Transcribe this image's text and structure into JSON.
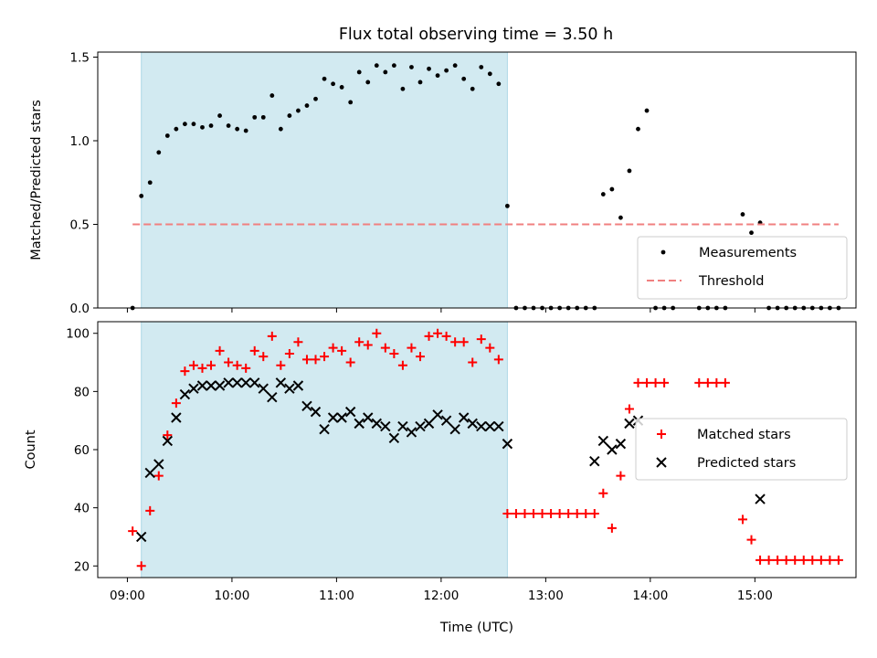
{
  "chart_data": [
    {
      "type": "scatter",
      "title": "Flux total observing time = 3.50 h",
      "xlabel": "",
      "ylabel": "Matched/Predicted stars",
      "xlim": [
        "08:43",
        "15:58"
      ],
      "ylim": [
        0,
        1.53
      ],
      "yticks": [
        0.0,
        0.5,
        1.0,
        1.5
      ],
      "ytick_labels": [
        "0.0",
        "0.5",
        "1.0",
        "1.5"
      ],
      "shaded_interval": [
        "09:08",
        "12:38"
      ],
      "shaded_color": "#add8e6",
      "legend_position": "lower-right",
      "series": [
        {
          "name": "Measurements",
          "marker": "dot",
          "color": "#000000",
          "points": [
            [
              "09:03",
              0.0
            ],
            [
              "09:08",
              0.67
            ],
            [
              "09:13",
              0.75
            ],
            [
              "09:18",
              0.93
            ],
            [
              "09:23",
              1.03
            ],
            [
              "09:28",
              1.07
            ],
            [
              "09:33",
              1.1
            ],
            [
              "09:38",
              1.1
            ],
            [
              "09:43",
              1.08
            ],
            [
              "09:48",
              1.09
            ],
            [
              "09:53",
              1.15
            ],
            [
              "09:58",
              1.09
            ],
            [
              "10:03",
              1.07
            ],
            [
              "10:08",
              1.06
            ],
            [
              "10:13",
              1.14
            ],
            [
              "10:18",
              1.14
            ],
            [
              "10:23",
              1.27
            ],
            [
              "10:28",
              1.07
            ],
            [
              "10:33",
              1.15
            ],
            [
              "10:38",
              1.18
            ],
            [
              "10:43",
              1.21
            ],
            [
              "10:48",
              1.25
            ],
            [
              "10:53",
              1.37
            ],
            [
              "10:58",
              1.34
            ],
            [
              "11:03",
              1.32
            ],
            [
              "11:08",
              1.23
            ],
            [
              "11:13",
              1.41
            ],
            [
              "11:18",
              1.35
            ],
            [
              "11:23",
              1.45
            ],
            [
              "11:28",
              1.41
            ],
            [
              "11:33",
              1.45
            ],
            [
              "11:38",
              1.31
            ],
            [
              "11:43",
              1.44
            ],
            [
              "11:48",
              1.35
            ],
            [
              "11:53",
              1.43
            ],
            [
              "11:58",
              1.39
            ],
            [
              "12:03",
              1.42
            ],
            [
              "12:08",
              1.45
            ],
            [
              "12:13",
              1.37
            ],
            [
              "12:18",
              1.31
            ],
            [
              "12:23",
              1.44
            ],
            [
              "12:28",
              1.4
            ],
            [
              "12:33",
              1.34
            ],
            [
              "12:38",
              0.61
            ],
            [
              "12:43",
              0.0
            ],
            [
              "12:48",
              0.0
            ],
            [
              "12:53",
              0.0
            ],
            [
              "12:58",
              0.0
            ],
            [
              "13:03",
              0.0
            ],
            [
              "13:08",
              0.0
            ],
            [
              "13:13",
              0.0
            ],
            [
              "13:18",
              0.0
            ],
            [
              "13:23",
              0.0
            ],
            [
              "13:28",
              0.0
            ],
            [
              "13:33",
              0.68
            ],
            [
              "13:38",
              0.71
            ],
            [
              "13:43",
              0.54
            ],
            [
              "13:48",
              0.82
            ],
            [
              "13:53",
              1.07
            ],
            [
              "13:58",
              1.18
            ],
            [
              "14:03",
              0.0
            ],
            [
              "14:08",
              0.0
            ],
            [
              "14:13",
              0.0
            ],
            [
              "14:28",
              0.0
            ],
            [
              "14:33",
              0.0
            ],
            [
              "14:38",
              0.0
            ],
            [
              "14:43",
              0.0
            ],
            [
              "14:53",
              0.56
            ],
            [
              "14:58",
              0.45
            ],
            [
              "15:03",
              0.51
            ],
            [
              "15:08",
              0.0
            ],
            [
              "15:13",
              0.0
            ],
            [
              "15:18",
              0.0
            ],
            [
              "15:23",
              0.0
            ],
            [
              "15:28",
              0.0
            ],
            [
              "15:33",
              0.0
            ],
            [
              "15:38",
              0.0
            ],
            [
              "15:43",
              0.0
            ],
            [
              "15:48",
              0.0
            ]
          ]
        },
        {
          "name": "Threshold",
          "type": "line",
          "style": "dashed",
          "color": "#f08080",
          "points": [
            [
              "09:03",
              0.5
            ],
            [
              "15:48",
              0.5
            ]
          ]
        }
      ]
    },
    {
      "type": "scatter",
      "title": "",
      "xlabel": "Time (UTC)",
      "ylabel": "Count",
      "xlim": [
        "08:43",
        "15:58"
      ],
      "xticks": [
        "09:00",
        "10:00",
        "11:00",
        "12:00",
        "13:00",
        "14:00",
        "15:00"
      ],
      "ylim": [
        16,
        104
      ],
      "yticks": [
        20,
        40,
        60,
        80,
        100
      ],
      "ytick_labels": [
        "20",
        "40",
        "60",
        "80",
        "100"
      ],
      "shaded_interval": [
        "09:08",
        "12:38"
      ],
      "shaded_color": "#add8e6",
      "legend_position": "center-right",
      "series": [
        {
          "name": "Matched stars",
          "marker": "plus",
          "color": "#ff0000",
          "points": [
            [
              "09:03",
              32
            ],
            [
              "09:08",
              20
            ],
            [
              "09:13",
              39
            ],
            [
              "09:18",
              51
            ],
            [
              "09:23",
              65
            ],
            [
              "09:28",
              76
            ],
            [
              "09:33",
              87
            ],
            [
              "09:38",
              89
            ],
            [
              "09:43",
              88
            ],
            [
              "09:48",
              89
            ],
            [
              "09:53",
              94
            ],
            [
              "09:58",
              90
            ],
            [
              "10:03",
              89
            ],
            [
              "10:08",
              88
            ],
            [
              "10:13",
              94
            ],
            [
              "10:18",
              92
            ],
            [
              "10:23",
              99
            ],
            [
              "10:28",
              89
            ],
            [
              "10:33",
              93
            ],
            [
              "10:38",
              97
            ],
            [
              "10:43",
              91
            ],
            [
              "10:48",
              91
            ],
            [
              "10:53",
              92
            ],
            [
              "10:58",
              95
            ],
            [
              "11:03",
              94
            ],
            [
              "11:08",
              90
            ],
            [
              "11:13",
              97
            ],
            [
              "11:18",
              96
            ],
            [
              "11:23",
              100
            ],
            [
              "11:28",
              95
            ],
            [
              "11:33",
              93
            ],
            [
              "11:38",
              89
            ],
            [
              "11:43",
              95
            ],
            [
              "11:48",
              92
            ],
            [
              "11:53",
              99
            ],
            [
              "11:58",
              100
            ],
            [
              "12:03",
              99
            ],
            [
              "12:08",
              97
            ],
            [
              "12:13",
              97
            ],
            [
              "12:18",
              90
            ],
            [
              "12:23",
              98
            ],
            [
              "12:28",
              95
            ],
            [
              "12:33",
              91
            ],
            [
              "12:38",
              38
            ],
            [
              "12:43",
              38
            ],
            [
              "12:48",
              38
            ],
            [
              "12:53",
              38
            ],
            [
              "12:58",
              38
            ],
            [
              "13:03",
              38
            ],
            [
              "13:08",
              38
            ],
            [
              "13:13",
              38
            ],
            [
              "13:18",
              38
            ],
            [
              "13:23",
              38
            ],
            [
              "13:28",
              38
            ],
            [
              "13:33",
              45
            ],
            [
              "13:38",
              33
            ],
            [
              "13:43",
              51
            ],
            [
              "13:48",
              74
            ],
            [
              "13:53",
              83
            ],
            [
              "13:58",
              83
            ],
            [
              "14:03",
              83
            ],
            [
              "14:08",
              83
            ],
            [
              "14:28",
              83
            ],
            [
              "14:33",
              83
            ],
            [
              "14:38",
              83
            ],
            [
              "14:43",
              83
            ],
            [
              "14:53",
              36
            ],
            [
              "14:58",
              29
            ],
            [
              "15:03",
              22
            ],
            [
              "15:08",
              22
            ],
            [
              "15:13",
              22
            ],
            [
              "15:18",
              22
            ],
            [
              "15:23",
              22
            ],
            [
              "15:28",
              22
            ],
            [
              "15:33",
              22
            ],
            [
              "15:38",
              22
            ],
            [
              "15:43",
              22
            ],
            [
              "15:48",
              22
            ]
          ]
        },
        {
          "name": "Predicted stars",
          "marker": "x",
          "color": "#000000",
          "points": [
            [
              "09:08",
              30
            ],
            [
              "09:13",
              52
            ],
            [
              "09:18",
              55
            ],
            [
              "09:23",
              63
            ],
            [
              "09:28",
              71
            ],
            [
              "09:33",
              79
            ],
            [
              "09:38",
              81
            ],
            [
              "09:43",
              82
            ],
            [
              "09:48",
              82
            ],
            [
              "09:53",
              82
            ],
            [
              "09:58",
              83
            ],
            [
              "10:03",
              83
            ],
            [
              "10:08",
              83
            ],
            [
              "10:13",
              83
            ],
            [
              "10:18",
              81
            ],
            [
              "10:23",
              78
            ],
            [
              "10:28",
              83
            ],
            [
              "10:33",
              81
            ],
            [
              "10:38",
              82
            ],
            [
              "10:43",
              75
            ],
            [
              "10:48",
              73
            ],
            [
              "10:53",
              67
            ],
            [
              "10:58",
              71
            ],
            [
              "11:03",
              71
            ],
            [
              "11:08",
              73
            ],
            [
              "11:13",
              69
            ],
            [
              "11:18",
              71
            ],
            [
              "11:23",
              69
            ],
            [
              "11:28",
              68
            ],
            [
              "11:33",
              64
            ],
            [
              "11:38",
              68
            ],
            [
              "11:43",
              66
            ],
            [
              "11:48",
              68
            ],
            [
              "11:53",
              69
            ],
            [
              "11:58",
              72
            ],
            [
              "12:03",
              70
            ],
            [
              "12:08",
              67
            ],
            [
              "12:13",
              71
            ],
            [
              "12:18",
              69
            ],
            [
              "12:23",
              68
            ],
            [
              "12:28",
              68
            ],
            [
              "12:33",
              68
            ],
            [
              "12:38",
              62
            ],
            [
              "13:28",
              56
            ],
            [
              "13:33",
              63
            ],
            [
              "13:38",
              60
            ],
            [
              "13:43",
              62
            ],
            [
              "13:48",
              69
            ],
            [
              "13:53",
              70
            ],
            [
              "15:03",
              43
            ]
          ]
        }
      ]
    }
  ]
}
